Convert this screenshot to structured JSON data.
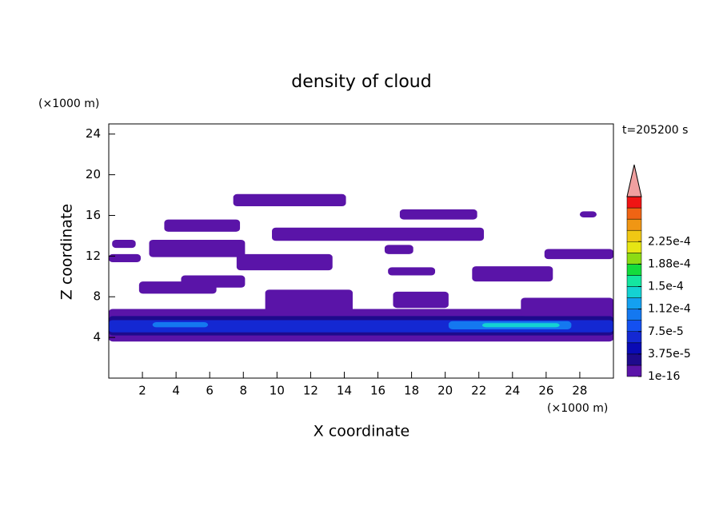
{
  "chart_data": {
    "type": "contour",
    "title": "density of cloud",
    "x_label": "X coordinate",
    "y_label": "Z coordinate",
    "x_unit": "(×1000 m)",
    "y_unit": "(×1000 m)",
    "time_label": "t=205200 s",
    "xlim": [
      0,
      30
    ],
    "ylim": [
      0,
      25
    ],
    "xticks": [
      2,
      4,
      6,
      8,
      10,
      12,
      14,
      16,
      18,
      20,
      22,
      24,
      26,
      28
    ],
    "yticks": [
      4,
      8,
      12,
      16,
      20,
      24
    ],
    "colorbar": {
      "colors": [
        "#5a14a8",
        "#1e0a8c",
        "#0a0ab4",
        "#1428d2",
        "#1450f0",
        "#1478f0",
        "#14a0f0",
        "#14d2d2",
        "#14e6a0",
        "#14dc3c",
        "#8cdc14",
        "#e6e614",
        "#f0c814",
        "#f09614",
        "#f06414",
        "#f01414"
      ],
      "over_color": "#f0a0a0",
      "lim": [
        0,
        0.0003
      ],
      "ticks": [
        {
          "value": 1e-16,
          "label": "1e-16"
        },
        {
          "value": 3.75e-05,
          "label": "3.75e-5"
        },
        {
          "value": 7.5e-05,
          "label": "7.5e-5"
        },
        {
          "value": 0.0001125,
          "label": "1.12e-4"
        },
        {
          "value": 0.00015,
          "label": "1.5e-4"
        },
        {
          "value": 0.0001875,
          "label": "1.88e-4"
        },
        {
          "value": 0.000225,
          "label": "2.25e-4"
        }
      ]
    },
    "regions": [
      {
        "x": [
          0,
          30
        ],
        "z": [
          3.6,
          6.8
        ],
        "level": 0
      },
      {
        "x": [
          0,
          30
        ],
        "z": [
          4.2,
          6.1
        ],
        "level": 1
      },
      {
        "x": [
          0,
          30
        ],
        "z": [
          4.5,
          5.7
        ],
        "level": 3
      },
      {
        "x": [
          20.2,
          27.5
        ],
        "z": [
          4.8,
          5.6
        ],
        "level": 5
      },
      {
        "x": [
          22.2,
          26.8
        ],
        "z": [
          5.0,
          5.4
        ],
        "level": 7
      },
      {
        "x": [
          2.6,
          5.9
        ],
        "z": [
          5.0,
          5.5
        ],
        "level": 5
      },
      {
        "x": [
          7.4,
          14.1
        ],
        "z": [
          16.9,
          18.1
        ],
        "level": 0
      },
      {
        "x": [
          17.3,
          21.9
        ],
        "z": [
          15.6,
          16.6
        ],
        "level": 0
      },
      {
        "x": [
          9.7,
          22.3
        ],
        "z": [
          13.5,
          14.8
        ],
        "level": 0
      },
      {
        "x": [
          28,
          29
        ],
        "z": [
          15.8,
          16.4
        ],
        "level": 0
      },
      {
        "x": [
          3.3,
          7.8
        ],
        "z": [
          14.4,
          15.6
        ],
        "level": 0
      },
      {
        "x": [
          2.4,
          8.1
        ],
        "z": [
          11.9,
          13.6
        ],
        "level": 0
      },
      {
        "x": [
          0.2,
          1.6
        ],
        "z": [
          12.8,
          13.6
        ],
        "level": 0
      },
      {
        "x": [
          0,
          1.9
        ],
        "z": [
          11.4,
          12.2
        ],
        "level": 0
      },
      {
        "x": [
          7.6,
          13.3
        ],
        "z": [
          10.6,
          12.2
        ],
        "level": 0
      },
      {
        "x": [
          16.4,
          18.1
        ],
        "z": [
          12.2,
          13.1
        ],
        "level": 0
      },
      {
        "x": [
          25.9,
          30
        ],
        "z": [
          11.7,
          12.7
        ],
        "level": 0
      },
      {
        "x": [
          21.6,
          26.4
        ],
        "z": [
          9.5,
          11
        ],
        "level": 0
      },
      {
        "x": [
          16.6,
          19.4
        ],
        "z": [
          10.1,
          10.9
        ],
        "level": 0
      },
      {
        "x": [
          4.3,
          8.1
        ],
        "z": [
          8.9,
          10.1
        ],
        "level": 0
      },
      {
        "x": [
          1.8,
          6.4
        ],
        "z": [
          8.3,
          9.5
        ],
        "level": 0
      },
      {
        "x": [
          9.3,
          14.5
        ],
        "z": [
          6.5,
          8.7
        ],
        "level": 0
      },
      {
        "x": [
          16.9,
          20.2
        ],
        "z": [
          6.9,
          8.5
        ],
        "level": 0
      },
      {
        "x": [
          24.5,
          30
        ],
        "z": [
          6.1,
          7.9
        ],
        "level": 0
      }
    ]
  }
}
